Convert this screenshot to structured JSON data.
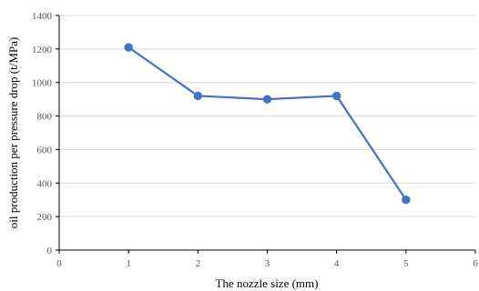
{
  "chart_data": {
    "type": "line",
    "title": "",
    "xlabel": "The nozzle size (mm)",
    "ylabel": "oil production per pressure drop (t/MPa)",
    "xlim": [
      0,
      6
    ],
    "ylim": [
      0,
      1400
    ],
    "x_ticks": [
      0,
      1,
      2,
      3,
      4,
      5,
      6
    ],
    "y_ticks": [
      0,
      200,
      400,
      600,
      800,
      1000,
      1200,
      1400
    ],
    "grid": {
      "horizontal": true,
      "vertical": false
    },
    "legend": "none",
    "series": [
      {
        "color": "#4472C4",
        "x": [
          1,
          2,
          3,
          4,
          5
        ],
        "y": [
          1210,
          920,
          900,
          920,
          300
        ]
      }
    ]
  }
}
